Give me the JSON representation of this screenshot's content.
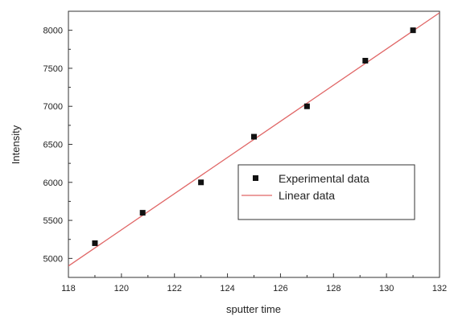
{
  "chart_data": {
    "type": "scatter",
    "xlabel": "sputter time",
    "ylabel": "Intensity",
    "xlim": [
      118,
      132
    ],
    "ylim": [
      4750,
      8250
    ],
    "xticks": [
      118,
      120,
      122,
      124,
      126,
      128,
      130,
      132
    ],
    "yticks": [
      5000,
      5500,
      6000,
      6500,
      7000,
      7500,
      8000
    ],
    "xtick_labels": [
      "118",
      "120",
      "122",
      "124",
      "126",
      "128",
      "130",
      "132"
    ],
    "ytick_labels": [
      "5000",
      "5500",
      "6000",
      "6500",
      "7000",
      "7500",
      "8000"
    ],
    "grid": false,
    "legend_position": "center-right",
    "series": [
      {
        "name": "Experimental data",
        "kind": "scatter",
        "marker": "square",
        "color": "#111111",
        "x": [
          119.0,
          120.8,
          123.0,
          125.0,
          127.0,
          129.2,
          131.0
        ],
        "y": [
          5200,
          5600,
          6000,
          6600,
          7000,
          7600,
          8000
        ]
      },
      {
        "name": "Linear data",
        "kind": "line",
        "color": "#e06666",
        "x": [
          118,
          132
        ],
        "y": [
          4900,
          8230
        ]
      }
    ]
  }
}
